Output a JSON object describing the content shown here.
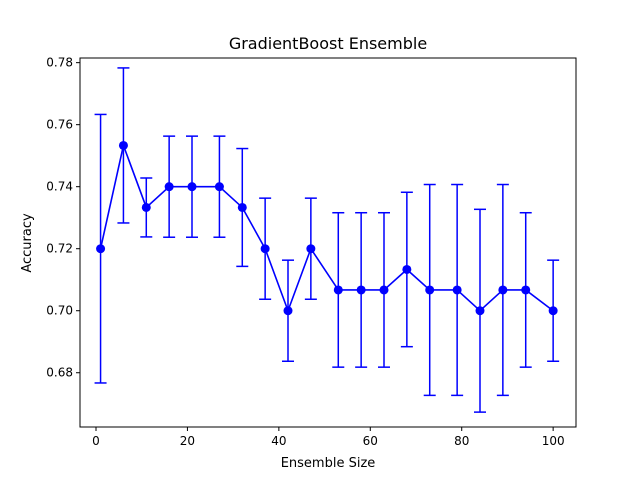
{
  "chart_data": {
    "type": "line",
    "title": "GradientBoost Ensemble",
    "xlabel": "Ensemble Size",
    "ylabel": "Accuracy",
    "xlim": [
      -3.5,
      105
    ],
    "ylim": [
      0.6625,
      0.7815
    ],
    "xticks": [
      0,
      20,
      40,
      60,
      80,
      100
    ],
    "xtick_labels": [
      "0",
      "20",
      "40",
      "60",
      "80",
      "100"
    ],
    "yticks": [
      0.68,
      0.7,
      0.72,
      0.74,
      0.76,
      0.78
    ],
    "ytick_labels": [
      "0.68",
      "0.70",
      "0.72",
      "0.74",
      "0.76",
      "0.78"
    ],
    "grid": false,
    "legend": "none",
    "color": "#0000ff",
    "series": [
      {
        "x": [
          1,
          6,
          11,
          16,
          21,
          27,
          32,
          37,
          42,
          47,
          53,
          58,
          63,
          68,
          73,
          79,
          84,
          89,
          94,
          100
        ],
        "y": [
          0.72,
          0.7533,
          0.7333,
          0.74,
          0.74,
          0.74,
          0.7333,
          0.72,
          0.7,
          0.72,
          0.7067,
          0.7067,
          0.7067,
          0.7133,
          0.7067,
          0.7067,
          0.7,
          0.7067,
          0.7067,
          0.7
        ],
        "yerr": [
          0.0433,
          0.025,
          0.0095,
          0.0163,
          0.0163,
          0.0163,
          0.019,
          0.0163,
          0.0163,
          0.0163,
          0.0249,
          0.0249,
          0.0249,
          0.0249,
          0.034,
          0.034,
          0.0327,
          0.034,
          0.0249,
          0.0163
        ]
      }
    ]
  }
}
